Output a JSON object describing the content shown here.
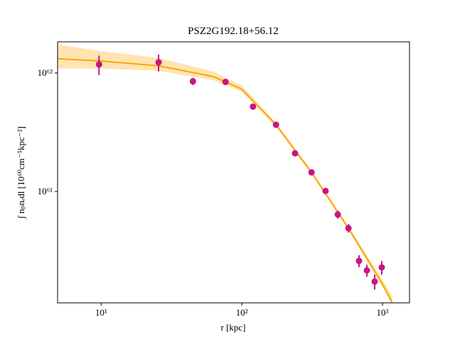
{
  "chart_data": {
    "type": "scatter",
    "title": "PSZ2G192.18+56.12",
    "x_label": "r [kpc]",
    "y_label": "∫ nₚnₑdl [10⁶⁰cm⁻⁵kpc⁻²]",
    "xscale": "log",
    "yscale": "log",
    "xlim": [
      4.9,
      1556
    ],
    "ylim": [
      1.15e+60,
      1.83e+62
    ],
    "xticks": [
      {
        "value": 10,
        "label": "10¹"
      },
      {
        "value": 100,
        "label": "10²"
      },
      {
        "value": 1000,
        "label": "10³"
      }
    ],
    "yticks": [
      {
        "value": 1e+61,
        "label": "10⁶¹"
      },
      {
        "value": 1e+62,
        "label": "10⁶²"
      }
    ],
    "model": {
      "color": "#ffa500",
      "x": [
        4.9,
        10,
        25.6,
        63,
        100,
        175,
        313,
        573,
        1000,
        1175
      ],
      "values": [
        1.32e+62,
        1.26e+62,
        1.15e+62,
        9.3e+61,
        7.3e+61,
        3.66e+61,
        1.45e+61,
        4.9e+60,
        1.66e+60,
        1.15e+60
      ],
      "lower": [
        1.09e+62,
        1.09e+62,
        1.04e+62,
        8.7e+61,
        6.9e+61,
        3.5e+61,
        1.4e+61,
        4.7e+60,
        1.55e+60,
        1.1e+60
      ],
      "upper": [
        1.74e+62,
        1.53e+62,
        1.34e+62,
        1.03e+62,
        7.8e+61,
        3.8e+61,
        1.5e+61,
        5.1e+60,
        1.8e+60,
        1.3e+60
      ]
    },
    "points": {
      "color": "#c71585",
      "x": [
        9.66,
        25.6,
        44.9,
        76.6,
        120,
        175,
        239,
        313,
        394,
        481,
        573,
        681,
        774,
        880,
        988
      ],
      "values": [
        1.18e+62,
        1.23e+62,
        8.5e+61,
        8.4e+61,
        5.2e+61,
        3.66e+61,
        2.1e+61,
        1.45e+61,
        1.01e+61,
        6.4e+60,
        4.9e+60,
        2.6e+60,
        2.16e+60,
        1.74e+60,
        2.29e+60
      ],
      "errors": [
        2.2e+61,
        2e+61,
        6e+60,
        3e+60,
        2e+60,
        2e+60,
        1e+60,
        7e+59,
        5e+59,
        5e+59,
        4e+59,
        3e+59,
        2.5e+59,
        2.5e+59,
        3e+59
      ]
    }
  }
}
